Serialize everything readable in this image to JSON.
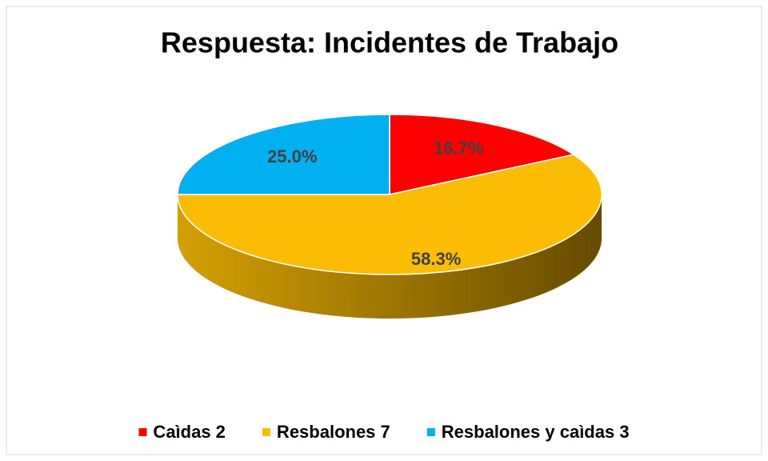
{
  "chart_data": {
    "type": "pie",
    "title": "Respuesta: Incidentes de Trabajo",
    "categories": [
      "Caìdas 2",
      "Resbalones 7",
      "Resbalones y caìdas 3"
    ],
    "values": [
      16.7,
      58.3,
      25.0
    ],
    "value_labels": [
      "16.7%",
      "58.3%",
      "25.0%"
    ],
    "colors": [
      "#ff0000",
      "#fbbc04",
      "#00b0f0"
    ],
    "legend": "bottom"
  }
}
